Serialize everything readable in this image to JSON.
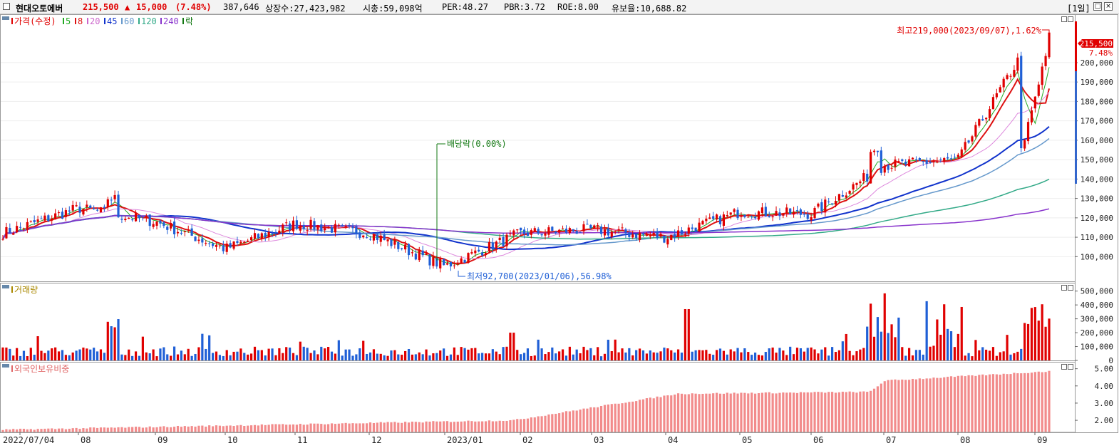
{
  "header": {
    "name": "현대오토에버",
    "price": "215,500",
    "change_arrow": "▲",
    "change": "15,000",
    "change_pct": "(7.48%)",
    "volume": "387,646",
    "listed": "상장수:27,423,982",
    "market_cap": "시총:59,098억",
    "per": "PER:48.27",
    "pbr": "PBR:3.72",
    "roe": "ROE:8.00",
    "float": "유보율:10,688.82",
    "period": "[1일]"
  },
  "legend": {
    "price_label": "가격(수정)",
    "ma": [
      {
        "label": "5",
        "color": "#22aa22"
      },
      {
        "label": "8",
        "color": "#dd1111"
      },
      {
        "label": "20",
        "color": "#cc66cc"
      },
      {
        "label": "45",
        "color": "#1133cc"
      },
      {
        "label": "60",
        "color": "#6699cc"
      },
      {
        "label": "120",
        "color": "#33aa88"
      },
      {
        "label": "240",
        "color": "#8833cc"
      },
      {
        "label": "락",
        "color": "#117711"
      }
    ],
    "volume_label": "거래량",
    "foreign_label": "외국인보유비중"
  },
  "annotations": {
    "high": "최고219,000(2023/09/07),1.62%",
    "low": "최저92,700(2023/01/06),56.98%",
    "dividend": "배당락(0.00%)",
    "last_price": "215,500",
    "last_pct": "7.48%"
  },
  "chart_data": [
    {
      "type": "line",
      "title": "가격(수정)",
      "x": [
        "2022/07",
        "2022/08",
        "2022/09",
        "2022/10",
        "2022/11",
        "2022/12",
        "2023/01",
        "2023/02",
        "2023/03",
        "2023/04",
        "2023/05",
        "2023/06",
        "2023/07",
        "2023/08",
        "2023/09"
      ],
      "series": [
        {
          "name": "가격(수정)",
          "values": [
            115000,
            125000,
            118000,
            104000,
            117000,
            112000,
            95000,
            112000,
            114000,
            110000,
            123000,
            122000,
            147000,
            150000,
            215500
          ]
        }
      ],
      "y_ticks": [
        100000,
        110000,
        120000,
        130000,
        140000,
        150000,
        160000,
        170000,
        180000,
        190000,
        200000
      ],
      "y_tick_labels": [
        "100,000",
        "110,000",
        "120,000",
        "130,000",
        "140,000",
        "150,000",
        "160,000",
        "170,000",
        "180,000",
        "190,000",
        "200,000"
      ],
      "ylim": [
        88000,
        222000
      ],
      "high": 219000,
      "low": 92700
    },
    {
      "type": "bar",
      "title": "거래량",
      "y_ticks": [
        0,
        100000,
        200000,
        300000,
        400000,
        500000
      ],
      "y_tick_labels": [
        "0",
        "100,000",
        "200,000",
        "300,000",
        "400,000",
        "500,000"
      ],
      "ylim": [
        0,
        560000
      ]
    },
    {
      "type": "bar",
      "title": "외국인보유비중",
      "y_ticks": [
        2,
        3,
        4,
        5
      ],
      "y_tick_labels": [
        "2.00",
        "3.00",
        "4.00",
        "5.00"
      ],
      "ylim": [
        1.3,
        5.4
      ]
    }
  ],
  "x_axis": {
    "labels": [
      "2022/07/04",
      "08",
      "09",
      "10",
      "11",
      "12",
      "2023/01",
      "02",
      "03",
      "04",
      "05",
      "06",
      "07",
      "08",
      "09"
    ]
  }
}
